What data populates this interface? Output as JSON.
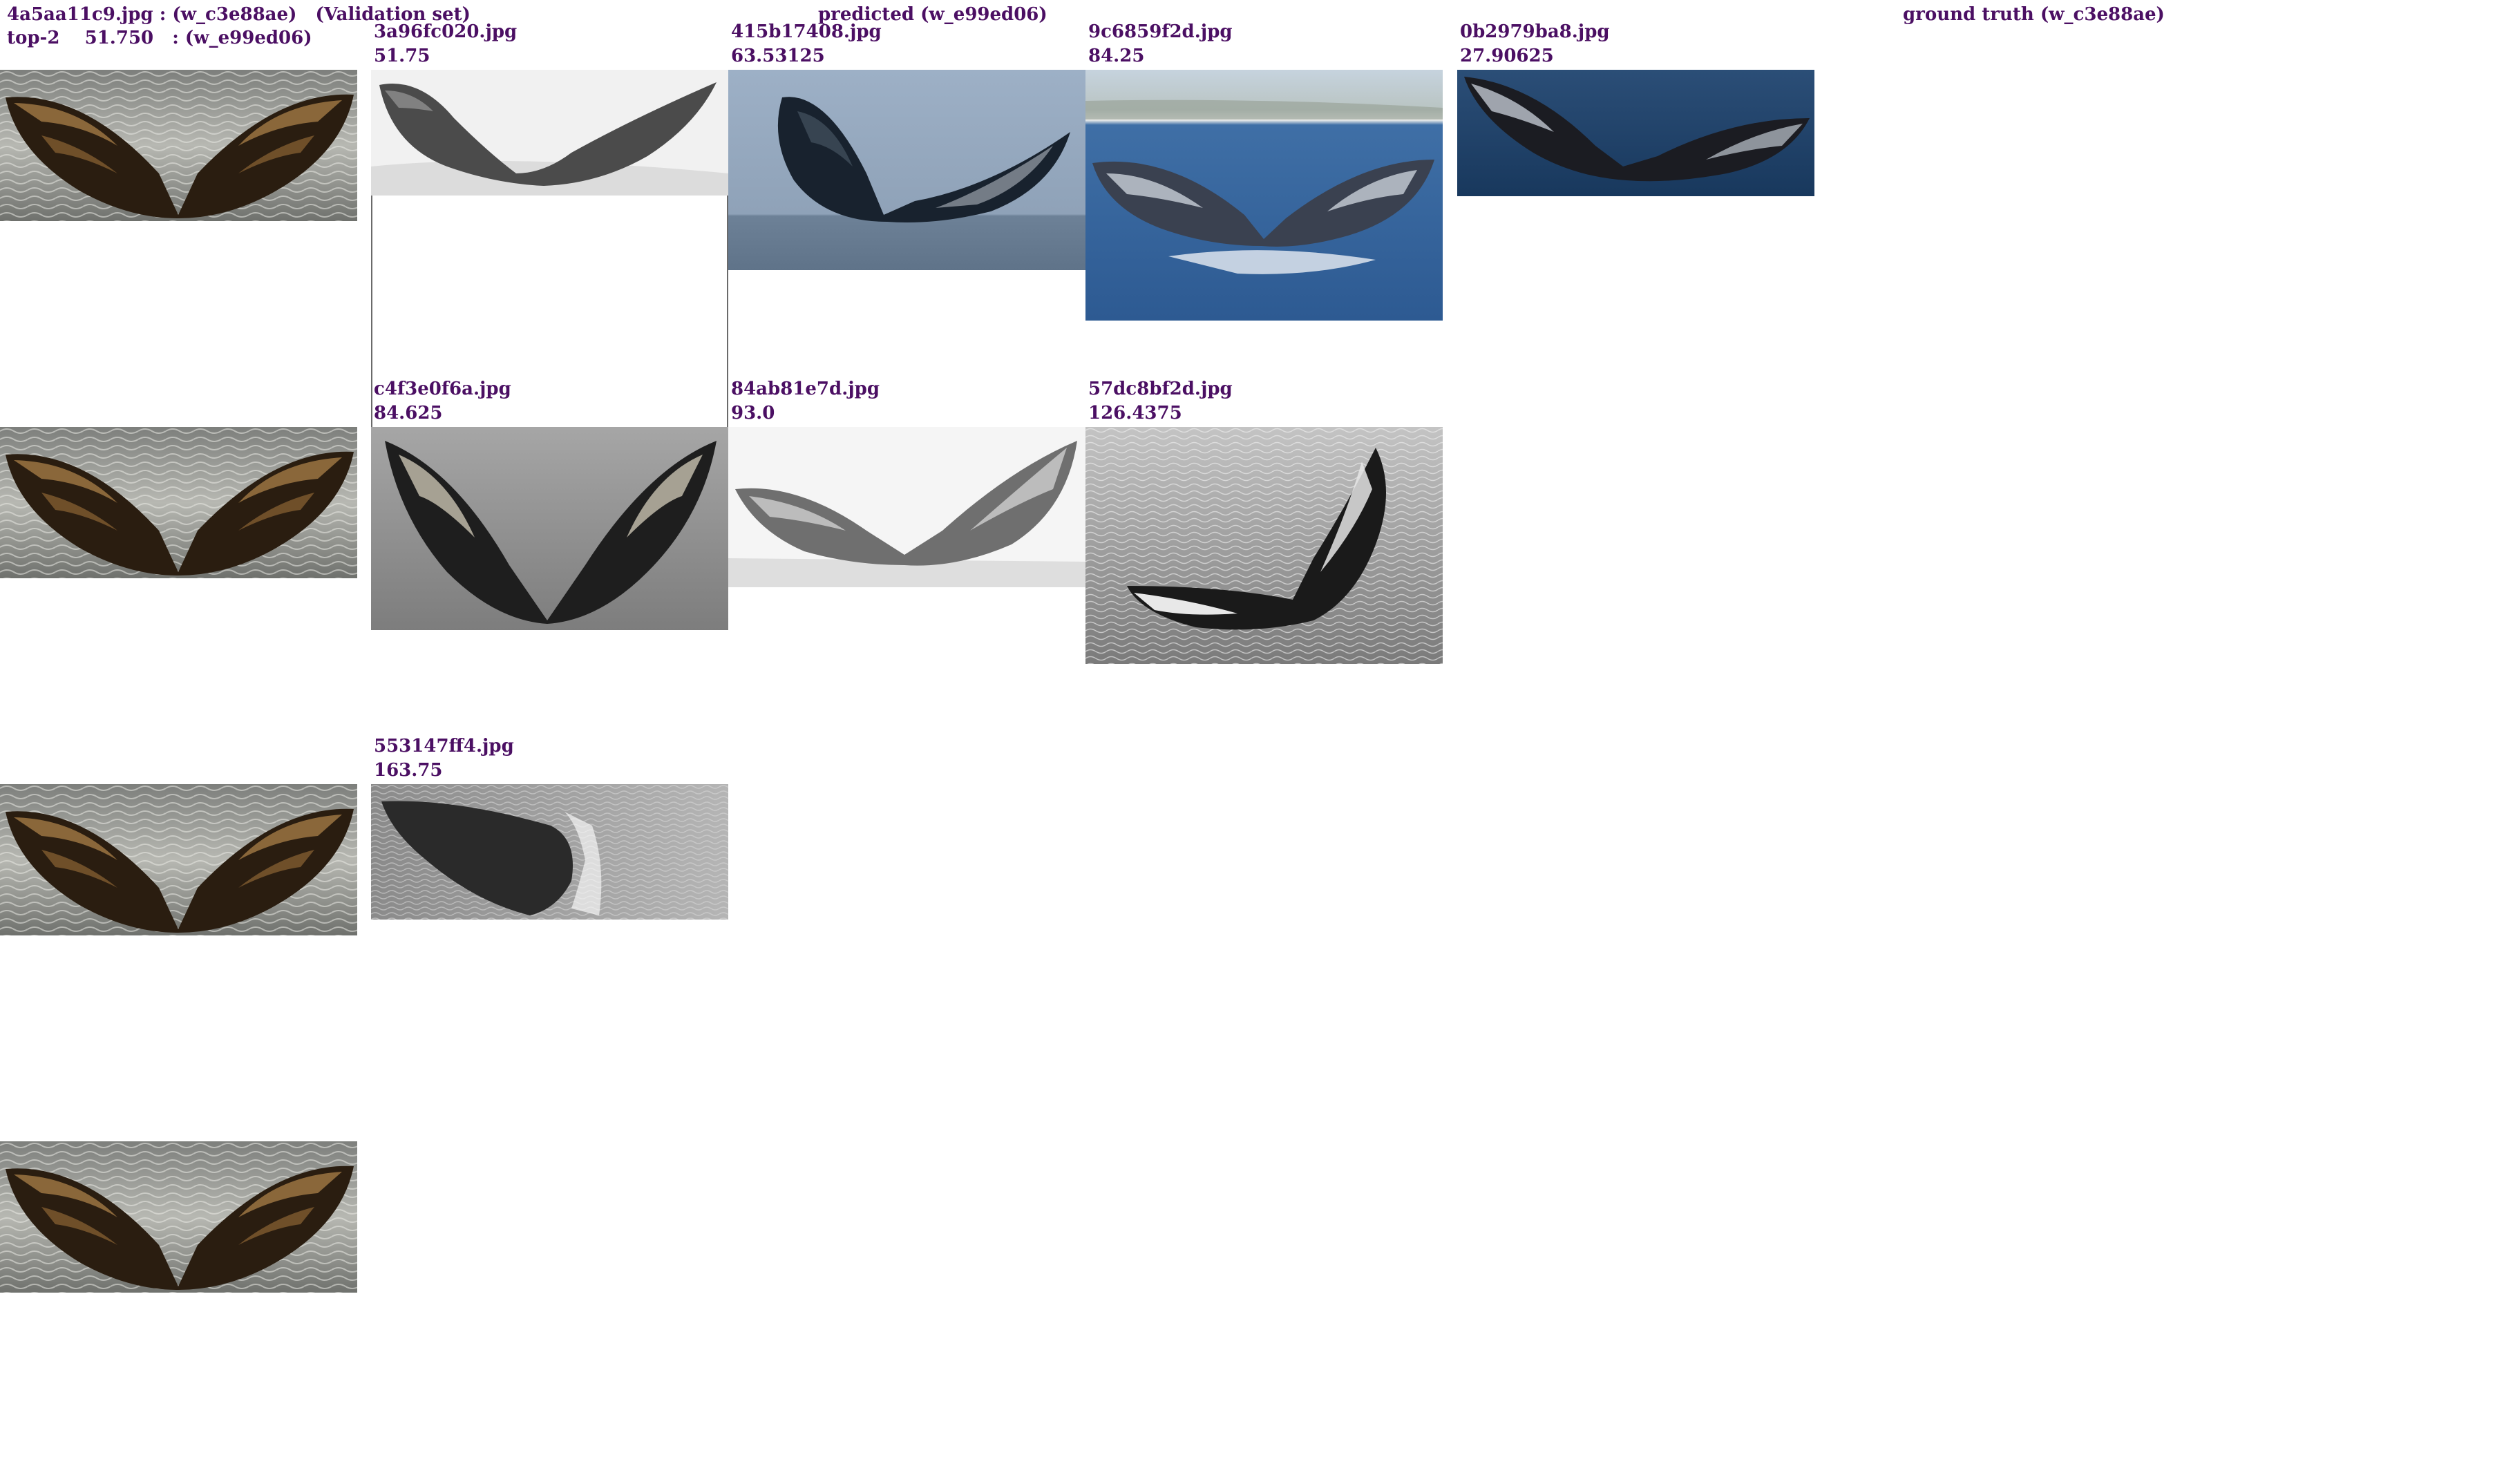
{
  "query": {
    "header_line1": "4a5aa11c9.jpg : (w_c3e88ae)   (Validation set)",
    "header_line2": "top-2    51.750   : (w_e99ed06)"
  },
  "columns": {
    "predicted_label": "predicted (w_e99ed06)",
    "ground_truth_label": "ground truth (w_c3e88ae)"
  },
  "predicted": [
    {
      "file": "3a96fc020.jpg",
      "score": "51.75",
      "tone": "gray-light"
    },
    {
      "file": "415b17408.jpg",
      "score": "63.53125",
      "tone": "calm-blue"
    },
    {
      "file": "9c6859f2d.jpg",
      "score": "84.25",
      "tone": "ocean-blue"
    },
    {
      "file": "c4f3e0f6a.jpg",
      "score": "84.625",
      "tone": "gray-mid"
    },
    {
      "file": "84ab81e7d.jpg",
      "score": "93.0",
      "tone": "gray-white"
    },
    {
      "file": "57dc8bf2d.jpg",
      "score": "126.4375",
      "tone": "gray-sea"
    },
    {
      "file": "553147ff4.jpg",
      "score": "163.75",
      "tone": "gray-dark"
    }
  ],
  "ground_truth": [
    {
      "file": "0b2979ba8.jpg",
      "score": "27.90625",
      "tone": "deep-blue"
    }
  ],
  "colors": {
    "label_text": "#4b0f63",
    "query_sea": "#8a8c88",
    "query_fluke": "#2a1d10",
    "query_patches": "#a27a45"
  }
}
